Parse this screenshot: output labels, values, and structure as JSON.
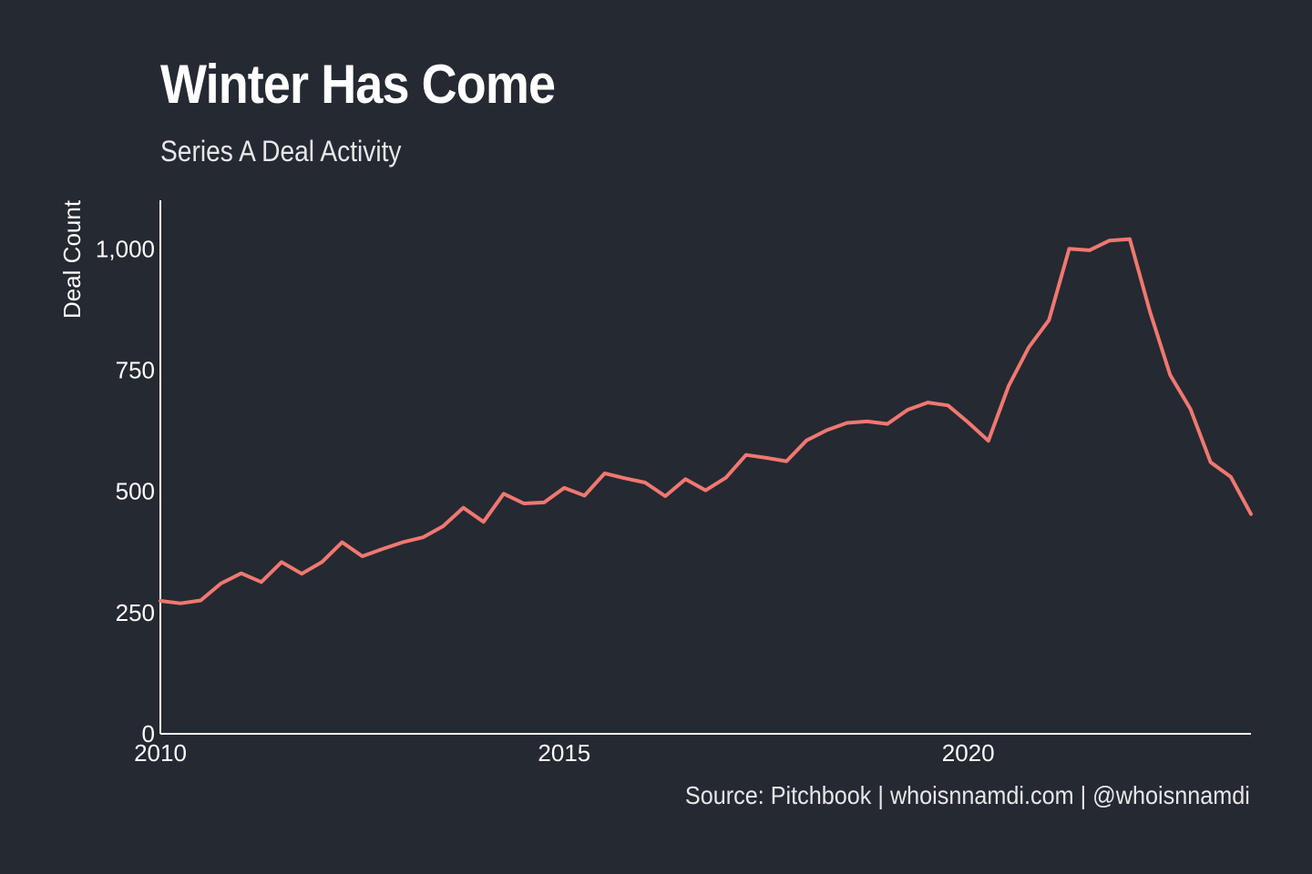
{
  "header": {
    "title": "Winter Has Come",
    "subtitle": "Series A Deal Activity"
  },
  "footer": {
    "caption": "Source: Pitchbook | whoisnnamdi.com | @whoisnnamdi"
  },
  "colors": {
    "background": "#252932",
    "line": "#f07870",
    "text": "#ffffff"
  },
  "chart_data": {
    "type": "line",
    "title": "Winter Has Come",
    "subtitle": "Series A Deal Activity",
    "xlabel": "",
    "ylabel": "Deal Count",
    "xlim": [
      2010,
      2023.5
    ],
    "ylim": [
      0,
      1100
    ],
    "x_ticks": [
      2010,
      2015,
      2020
    ],
    "x_tick_labels": [
      "2010",
      "2015",
      "2020"
    ],
    "y_ticks": [
      0,
      250,
      500,
      750,
      1000
    ],
    "y_tick_labels": [
      "0",
      "250",
      "500",
      "750",
      "1,000"
    ],
    "grid": false,
    "series": [
      {
        "name": "",
        "x": [
          2010.0,
          2010.25,
          2010.5,
          2010.75,
          2011.0,
          2011.25,
          2011.5,
          2011.75,
          2012.0,
          2012.25,
          2012.5,
          2012.75,
          2013.0,
          2013.25,
          2013.5,
          2013.75,
          2014.0,
          2014.25,
          2014.5,
          2014.75,
          2015.0,
          2015.25,
          2015.5,
          2015.75,
          2016.0,
          2016.25,
          2016.5,
          2016.75,
          2017.0,
          2017.25,
          2017.5,
          2017.75,
          2018.0,
          2018.25,
          2018.5,
          2018.75,
          2019.0,
          2019.25,
          2019.5,
          2019.75,
          2020.0,
          2020.25,
          2020.5,
          2020.75,
          2021.0,
          2021.25,
          2021.5,
          2021.75,
          2022.0,
          2022.25,
          2022.5,
          2022.75,
          2023.0,
          2023.25,
          2023.5
        ],
        "values": [
          274,
          269,
          275,
          310,
          331,
          313,
          354,
          330,
          354,
          395,
          366,
          381,
          395,
          405,
          428,
          466,
          437,
          495,
          475,
          477,
          507,
          491,
          537,
          527,
          518,
          490,
          525,
          502,
          528,
          575,
          569,
          562,
          605,
          626,
          641,
          644,
          639,
          668,
          683,
          677,
          642,
          604,
          717,
          797,
          853,
          1000,
          997,
          1017,
          1020,
          870,
          740,
          670,
          560,
          530,
          453
        ]
      }
    ]
  }
}
